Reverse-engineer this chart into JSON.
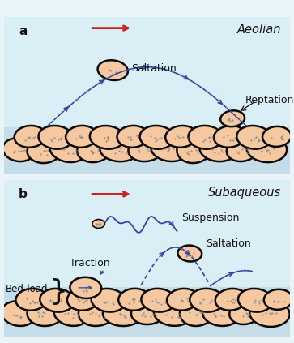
{
  "bg_outer": "#e8f4f8",
  "bg_panel": "#daeef5",
  "bg_ground": "#c5dde8",
  "grain_fill": "#f5c8a0",
  "grain_edge": "#0a0a0a",
  "red_arrow": "#cc2222",
  "blue_arrow": "#3344aa",
  "text_dark": "#111111",
  "title_a": "Aeolian",
  "title_b": "Subaqueous",
  "lbl_a": "a",
  "lbl_b": "b",
  "lbl_saltation_a": "Saltation",
  "lbl_reptation": "Reptation",
  "lbl_saltation_b": "Saltation",
  "lbl_suspension": "Suspension",
  "lbl_traction": "Traction",
  "lbl_bedload": "Bed-load"
}
